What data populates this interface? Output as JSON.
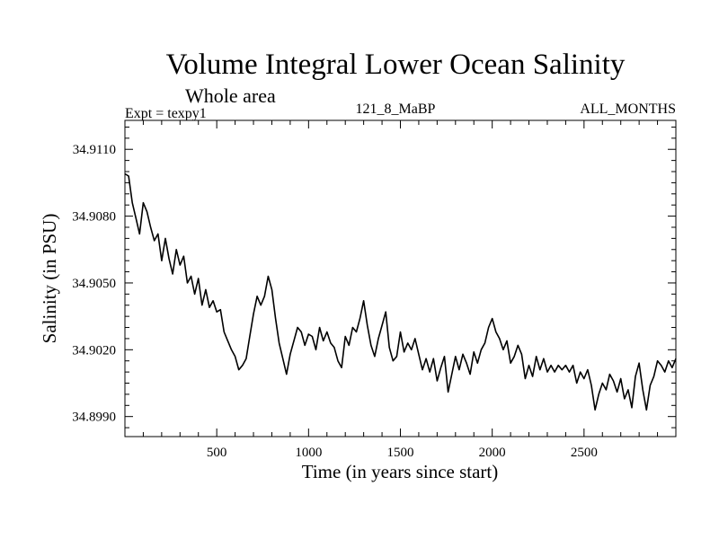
{
  "chart_data": {
    "type": "line",
    "title": "Volume Integral Lower Ocean Salinity",
    "subtitle": "Whole area",
    "annotations": {
      "left": "Expt = texpy1",
      "center": "121_8_MaBP",
      "right": "ALL_MONTHS"
    },
    "xlabel": "Time (in years since start)",
    "ylabel": "Salinity (in PSU)",
    "xlim": [
      0,
      3000
    ],
    "ylim": [
      34.8981,
      34.9123
    ],
    "x_ticks": [
      500,
      1000,
      1500,
      2000,
      2500
    ],
    "x_tick_labels": [
      "500",
      "1000",
      "1500",
      "2000",
      "2500"
    ],
    "y_ticks": [
      34.899,
      34.902,
      34.905,
      34.908,
      34.911
    ],
    "y_tick_labels": [
      "34.8990",
      "34.9020",
      "34.9050",
      "34.9080",
      "34.9110"
    ],
    "grid": false,
    "line_color": "#000000",
    "series": [
      {
        "x": [
          0,
          20,
          40,
          60,
          80,
          100,
          120,
          140,
          160,
          180,
          200,
          220,
          240,
          260,
          280,
          300,
          320,
          340,
          360,
          380,
          400,
          420,
          440,
          460,
          480,
          500,
          520,
          540,
          560,
          580,
          600,
          620,
          640,
          660,
          680,
          700,
          720,
          740,
          760,
          780,
          800,
          820,
          840,
          860,
          880,
          900,
          920,
          940,
          960,
          980,
          1000,
          1020,
          1040,
          1060,
          1080,
          1100,
          1120,
          1140,
          1160,
          1180,
          1200,
          1220,
          1240,
          1260,
          1280,
          1300,
          1320,
          1340,
          1360,
          1380,
          1400,
          1420,
          1440,
          1460,
          1480,
          1500,
          1520,
          1540,
          1560,
          1580,
          1600,
          1620,
          1640,
          1660,
          1680,
          1700,
          1720,
          1740,
          1760,
          1780,
          1800,
          1820,
          1840,
          1860,
          1880,
          1900,
          1920,
          1940,
          1960,
          1980,
          2000,
          2020,
          2040,
          2060,
          2080,
          2100,
          2120,
          2140,
          2160,
          2180,
          2200,
          2220,
          2240,
          2260,
          2280,
          2300,
          2320,
          2340,
          2360,
          2380,
          2400,
          2420,
          2440,
          2460,
          2480,
          2500,
          2520,
          2540,
          2560,
          2580,
          2600,
          2620,
          2640,
          2660,
          2680,
          2700,
          2720,
          2740,
          2760,
          2780,
          2800,
          2820,
          2840,
          2860,
          2880,
          2900,
          2920,
          2940,
          2960,
          2980,
          3000
        ],
        "y": [
          34.9099,
          34.9098,
          34.9086,
          34.9079,
          34.9072,
          34.9086,
          34.9082,
          34.9075,
          34.9069,
          34.9072,
          34.906,
          34.907,
          34.9061,
          34.9054,
          34.9065,
          34.9058,
          34.9062,
          34.905,
          34.9053,
          34.9045,
          34.9052,
          34.904,
          34.9047,
          34.9039,
          34.9042,
          34.9037,
          34.9038,
          34.9028,
          34.9024,
          34.902,
          34.9017,
          34.9011,
          34.9013,
          34.9016,
          34.9026,
          34.9036,
          34.9044,
          34.904,
          34.9044,
          34.9053,
          34.9047,
          34.9034,
          34.9023,
          34.9016,
          34.9009,
          34.9018,
          34.9024,
          34.903,
          34.9028,
          34.9022,
          34.9027,
          34.9026,
          34.902,
          34.903,
          34.9024,
          34.9028,
          34.9023,
          34.9021,
          34.9015,
          34.9012,
          34.9026,
          34.9022,
          34.903,
          34.9028,
          34.9034,
          34.9042,
          34.9031,
          34.9022,
          34.9017,
          34.9025,
          34.9031,
          34.9037,
          34.9021,
          34.9015,
          34.9017,
          34.9028,
          34.9019,
          34.9023,
          34.902,
          34.9025,
          34.9018,
          34.9011,
          34.9016,
          34.901,
          34.9016,
          34.9006,
          34.9012,
          34.9017,
          34.9001,
          34.9009,
          34.9017,
          34.9011,
          34.9018,
          34.9014,
          34.9009,
          34.9019,
          34.9014,
          34.902,
          34.9023,
          34.903,
          34.9034,
          34.9028,
          34.9025,
          34.902,
          34.9024,
          34.9014,
          34.9017,
          34.9022,
          34.9018,
          34.9007,
          34.9013,
          34.9008,
          34.9017,
          34.9011,
          34.9016,
          34.901,
          34.9013,
          34.901,
          34.9013,
          34.9011,
          34.9013,
          34.901,
          34.9013,
          34.9005,
          34.901,
          34.9007,
          34.9011,
          34.9004,
          34.8993,
          34.9,
          34.9005,
          34.9002,
          34.9009,
          34.9006,
          34.9001,
          34.9007,
          34.8998,
          34.9002,
          34.8994,
          34.9008,
          34.9014,
          34.9002,
          34.8993,
          34.9004,
          34.9008,
          34.9015,
          34.9013,
          34.901,
          34.9015,
          34.9012,
          34.9016
        ]
      }
    ]
  }
}
